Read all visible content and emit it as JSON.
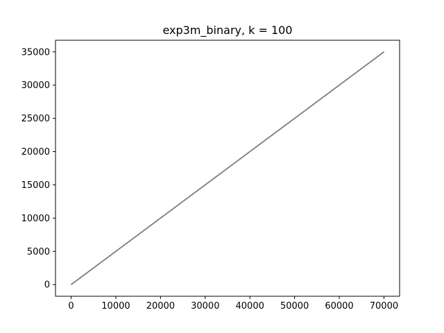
{
  "chart_data": {
    "type": "line",
    "title": "exp3m_binary, k = 100",
    "xlabel": "",
    "ylabel": "",
    "xlim": [
      -3500,
      73500
    ],
    "ylim": [
      -1750,
      36750
    ],
    "x_ticks": [
      0,
      10000,
      20000,
      30000,
      40000,
      50000,
      60000,
      70000
    ],
    "y_ticks": [
      0,
      5000,
      10000,
      15000,
      20000,
      25000,
      30000,
      35000
    ],
    "grid": false,
    "legend": "none",
    "series": [
      {
        "x": [
          0,
          70000
        ],
        "y": [
          0,
          35000
        ],
        "color": "#d62728"
      },
      {
        "x": [
          0,
          70000
        ],
        "y": [
          0,
          35000
        ],
        "color": "#9467bd"
      },
      {
        "x": [
          0,
          70000
        ],
        "y": [
          0,
          35000
        ],
        "color": "#8c564b"
      },
      {
        "x": [
          0,
          70000
        ],
        "y": [
          0,
          35000
        ],
        "color": "#e377c2"
      },
      {
        "x": [
          0,
          70000
        ],
        "y": [
          0,
          35000
        ],
        "color": "#7f7f7f"
      }
    ]
  }
}
